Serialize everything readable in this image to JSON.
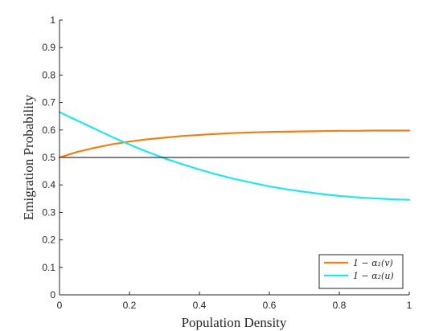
{
  "chart_data": {
    "type": "line",
    "xlabel": "Population Density",
    "ylabel": "Emigration Probability",
    "xlim": [
      0,
      1
    ],
    "ylim": [
      0,
      1
    ],
    "x_ticks": [
      "0",
      "0.2",
      "0.4",
      "0.6",
      "0.8",
      "1"
    ],
    "y_ticks": [
      "0",
      "0.1",
      "0.2",
      "0.3",
      "0.4",
      "0.5",
      "0.6",
      "0.7",
      "0.8",
      "0.9",
      "1"
    ],
    "grid": false,
    "legend_position": "bottom-right",
    "series": [
      {
        "name": "1 − α₁(v)",
        "color": "#f07f13",
        "x": [
          0,
          0.05,
          0.1,
          0.15,
          0.2,
          0.25,
          0.3,
          0.35,
          0.4,
          0.45,
          0.5,
          0.55,
          0.6,
          0.65,
          0.7,
          0.75,
          0.8,
          0.85,
          0.9,
          0.95,
          1
        ],
        "y": [
          0.5,
          0.52,
          0.535,
          0.548,
          0.558,
          0.566,
          0.572,
          0.578,
          0.582,
          0.586,
          0.589,
          0.591,
          0.593,
          0.594,
          0.595,
          0.596,
          0.597,
          0.597,
          0.598,
          0.598,
          0.598
        ]
      },
      {
        "name": "1 − α₂(u)",
        "color": "#22e5ee",
        "x": [
          0,
          0.05,
          0.1,
          0.15,
          0.2,
          0.25,
          0.3,
          0.35,
          0.4,
          0.45,
          0.5,
          0.55,
          0.6,
          0.65,
          0.7,
          0.75,
          0.8,
          0.85,
          0.9,
          0.95,
          1
        ],
        "y": [
          0.665,
          0.635,
          0.605,
          0.575,
          0.547,
          0.521,
          0.497,
          0.476,
          0.456,
          0.438,
          0.422,
          0.408,
          0.395,
          0.384,
          0.375,
          0.367,
          0.36,
          0.355,
          0.351,
          0.348,
          0.346
        ]
      },
      {
        "name": "",
        "color": "#000000",
        "x": [
          0,
          1
        ],
        "y": [
          0.5,
          0.5
        ]
      }
    ]
  }
}
